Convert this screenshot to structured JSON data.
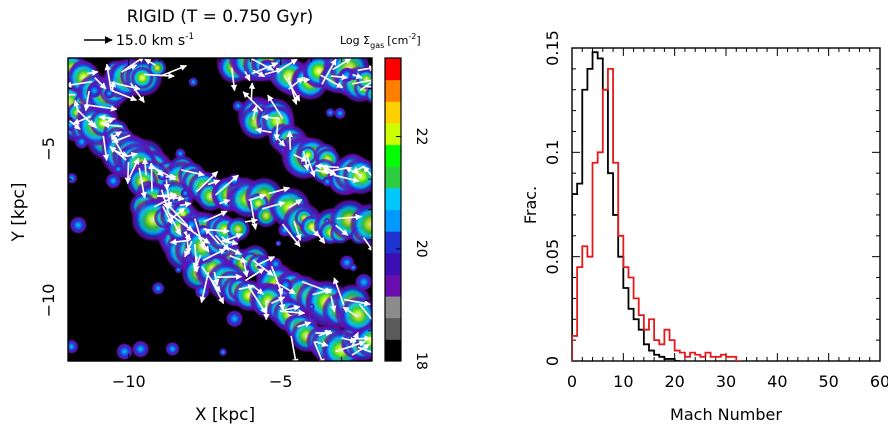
{
  "chart_data": [
    {
      "type": "heatmap",
      "title": "RIGID (T = 0.750 Gyr)",
      "velocity_key": "15.0 km s",
      "velocity_key_exp": "-1",
      "colorbar_label": "Log Σ",
      "colorbar_label_sub": "gas",
      "colorbar_label_unit": "[cm",
      "colorbar_label_unit_exp": "-2",
      "colorbar_label_close": "]",
      "xlabel": "X [kpc]",
      "ylabel": "Y [kpc]",
      "xlim": [
        -12,
        -2
      ],
      "ylim": [
        -12,
        -2
      ],
      "xticks": [
        -10,
        -5
      ],
      "yticks": [
        -5,
        -10
      ],
      "colorbar_range": [
        18,
        23.4
      ],
      "colorbar_ticks": [
        18,
        20,
        22
      ],
      "colorbar_colors": [
        "#000000",
        "#5a5a5a",
        "#8c8c8c",
        "#6a0dad",
        "#3b0fb4",
        "#1f33d1",
        "#0099ff",
        "#00c8ff",
        "#2ecc40",
        "#00ff00",
        "#ccff00",
        "#ffd000",
        "#ff7f00",
        "#ff0000"
      ],
      "background_color": "#000000",
      "arrow_color": "#ffffff"
    },
    {
      "type": "line",
      "xlabel": "Mach Number",
      "ylabel": "Frac.",
      "xlim": [
        0,
        60
      ],
      "ylim": [
        0,
        0.15
      ],
      "xticks": [
        0,
        10,
        20,
        30,
        40,
        50,
        60
      ],
      "yticks": [
        0,
        0.05,
        0.1,
        0.15
      ],
      "ytick_labels": [
        "0",
        "0.05",
        "0.1",
        "0.15"
      ],
      "bin_width": 1,
      "series": [
        {
          "color": "#000000",
          "x": [
            0,
            1,
            2,
            3,
            4,
            5,
            6,
            7,
            8,
            9,
            10,
            11,
            12,
            13,
            14,
            15,
            16,
            17,
            18,
            19,
            20
          ],
          "values": [
            0.08,
            0.085,
            0.13,
            0.14,
            0.148,
            0.145,
            0.13,
            0.09,
            0.07,
            0.05,
            0.035,
            0.025,
            0.02,
            0.015,
            0.008,
            0.005,
            0.003,
            0.002,
            0.001,
            0.001,
            0
          ]
        },
        {
          "color": "#e41a1c",
          "x": [
            0,
            1,
            2,
            3,
            4,
            5,
            6,
            7,
            8,
            9,
            10,
            11,
            12,
            13,
            14,
            15,
            16,
            17,
            18,
            19,
            20,
            21,
            22,
            23,
            24,
            25,
            26,
            27,
            28,
            29,
            30,
            31,
            32
          ],
          "values": [
            0.012,
            0.045,
            0.055,
            0.05,
            0.095,
            0.1,
            0.13,
            0.14,
            0.095,
            0.06,
            0.045,
            0.04,
            0.03,
            0.022,
            0.015,
            0.02,
            0.01,
            0.008,
            0.015,
            0.01,
            0.005,
            0.004,
            0.002,
            0.004,
            0.003,
            0.002,
            0.004,
            0.002,
            0.002,
            0.003,
            0.002,
            0.002,
            0
          ]
        }
      ]
    }
  ]
}
